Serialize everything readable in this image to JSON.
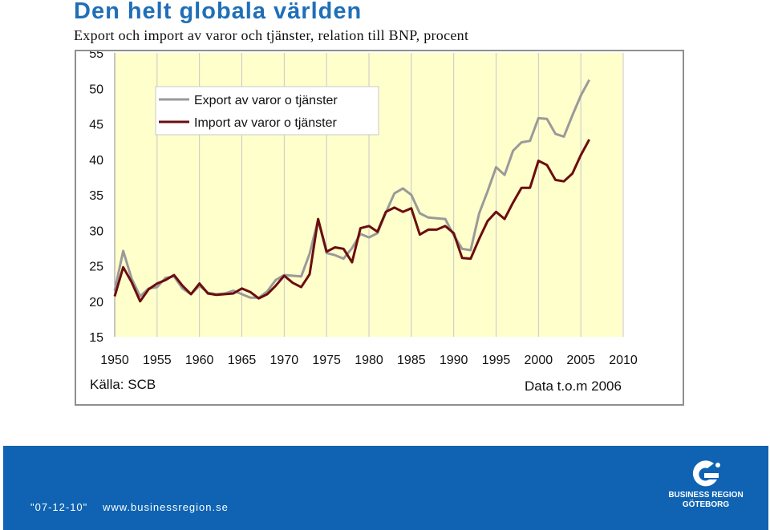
{
  "header": {
    "title": "Den helt globala världen",
    "subtitle": "Export och import av varor och tjänster, relation till BNP, procent"
  },
  "footer": {
    "date": "\"07-12-10\"",
    "url": "www.businessregion.se",
    "brand_line1": "BUSINESS REGION",
    "brand_line2": "GÖTEBORG"
  },
  "colors": {
    "brand_blue": "#1f6fb8",
    "footer_blue": "#0f63b2",
    "plot_bg": "#ffffcc",
    "export": "#9a9a9a",
    "import": "#6b0d0d"
  },
  "chart_data": {
    "type": "line",
    "title": "Den helt globala världen",
    "subtitle": "Export och import av varor och tjänster, relation till BNP, procent",
    "xlim": [
      1950,
      2010
    ],
    "ylim": [
      15,
      55
    ],
    "xticks": [
      "1950",
      "1955",
      "1960",
      "1965",
      "1970",
      "1975",
      "1980",
      "1985",
      "1990",
      "1995",
      "2000",
      "2005",
      "2010"
    ],
    "yticks": [
      "55",
      "50",
      "45",
      "40",
      "35",
      "30",
      "25",
      "20",
      "15"
    ],
    "grid": "vertical",
    "legend": "top-left",
    "source": "Källa: SCB",
    "note": "Data t.o.m 2006",
    "x": [
      1950,
      1951,
      1952,
      1953,
      1954,
      1955,
      1956,
      1957,
      1958,
      1959,
      1960,
      1961,
      1962,
      1963,
      1964,
      1965,
      1966,
      1967,
      1968,
      1969,
      1970,
      1971,
      1972,
      1973,
      1974,
      1975,
      1976,
      1977,
      1978,
      1979,
      1980,
      1981,
      1982,
      1983,
      1984,
      1985,
      1986,
      1987,
      1988,
      1989,
      1990,
      1991,
      1992,
      1993,
      1994,
      1995,
      1996,
      1997,
      1998,
      1999,
      2000,
      2001,
      2002,
      2003,
      2004,
      2005,
      2006
    ],
    "series": [
      {
        "name": "Export av varor o tjänster",
        "values": [
          21.5,
          27.1,
          23.2,
          20.7,
          21.8,
          22.0,
          23.3,
          23.5,
          21.8,
          21.0,
          22.2,
          21.2,
          21.0,
          21.1,
          21.5,
          21.0,
          20.5,
          20.5,
          21.4,
          23.0,
          23.7,
          23.6,
          23.5,
          26.7,
          31.5,
          26.8,
          26.5,
          26.0,
          27.5,
          29.5,
          29.0,
          29.6,
          32.5,
          35.2,
          35.9,
          35.0,
          32.4,
          31.8,
          31.7,
          31.6,
          29.3,
          27.4,
          27.2,
          32.4,
          35.5,
          38.9,
          37.8,
          41.2,
          42.4,
          42.6,
          45.8,
          45.7,
          43.6,
          43.2,
          46.2,
          49.0,
          51.2
        ]
      },
      {
        "name": "Import av varor o tjänster",
        "values": [
          20.7,
          24.8,
          22.7,
          20.0,
          21.7,
          22.5,
          23.0,
          23.7,
          22.2,
          21.0,
          22.5,
          21.1,
          20.9,
          21.0,
          21.1,
          21.8,
          21.3,
          20.4,
          21.0,
          22.2,
          23.6,
          22.6,
          22.0,
          23.8,
          31.6,
          27.0,
          27.6,
          27.4,
          25.5,
          30.3,
          30.6,
          29.8,
          32.6,
          33.2,
          32.6,
          33.1,
          29.4,
          30.1,
          30.1,
          30.6,
          29.6,
          26.1,
          26.0,
          28.8,
          31.3,
          32.6,
          31.6,
          33.9,
          36.0,
          36.0,
          39.8,
          39.2,
          37.1,
          36.9,
          38.0,
          40.6,
          42.8
        ]
      }
    ]
  }
}
